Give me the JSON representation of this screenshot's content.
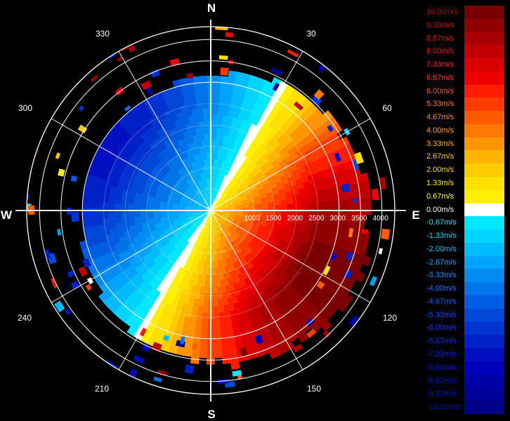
{
  "chart_data": {
    "type": "heatmap",
    "subtype": "polar-radar-ppi",
    "compass": {
      "north": "N",
      "east": "E",
      "south": "S",
      "west": "W"
    },
    "azimuth_labels": [
      "30",
      "60",
      "120",
      "150",
      "210",
      "240",
      "300",
      "330"
    ],
    "range_labels": [
      "1000",
      "1500",
      "2000",
      "2500",
      "3000",
      "3500",
      "4000"
    ],
    "range_max": 4300,
    "colorbar": {
      "labels": [
        "10.00m/s",
        "9.33m/s",
        "8.67m/s",
        "8.00m/s",
        "7.33m/s",
        "6.67m/s",
        "6.00m/s",
        "5.33m/s",
        "4.67m/s",
        "4.00m/s",
        "3.33m/s",
        "2.67m/s",
        "2.00m/s",
        "1.33m/s",
        "0.67m/s",
        "0.00m/s",
        "-0.67m/s",
        "-1.33m/s",
        "-2.00m/s",
        "-2.67m/s",
        "-3.33m/s",
        "-4.00m/s",
        "-4.67m/s",
        "-5.33m/s",
        "-6.00m/s",
        "-6.67m/s",
        "-7.33m/s",
        "-8.00m/s",
        "-8.67m/s",
        "-9.33m/s",
        "-10.00m/s"
      ],
      "colors": [
        "#7a0000",
        "#900000",
        "#a80000",
        "#c00000",
        "#d80000",
        "#ee0000",
        "#ff1e00",
        "#ff3c00",
        "#ff5a00",
        "#ff7800",
        "#ff9600",
        "#ffb400",
        "#ffcc00",
        "#ffe000",
        "#fff000",
        "#ffffff",
        "#00e8ff",
        "#00d4ff",
        "#00bcff",
        "#00a4ff",
        "#008cf0",
        "#0074e8",
        "#005ce0",
        "#0048d8",
        "#0034d0",
        "#0020c8",
        "#0010c0",
        "#0000b8",
        "#0000a8",
        "#000098",
        "#000088"
      ],
      "label_colors": [
        "#a80000",
        "#c00000",
        "#d80000",
        "#ee0000",
        "#ff2020",
        "#ff3c00",
        "#ff5a00",
        "#ff7800",
        "#ff8c00",
        "#ffa000",
        "#ffb400",
        "#ffc800",
        "#ffdc00",
        "#ffee00",
        "#ffff30",
        "#ffffff",
        "#00e8ff",
        "#00d4ff",
        "#00bcff",
        "#00a4ff",
        "#008cff",
        "#0074ff",
        "#005cff",
        "#0048ff",
        "#0034ff",
        "#0020ff",
        "#0010ff",
        "#0000ff",
        "#0000e0",
        "#0000c8",
        "#0000b0"
      ]
    },
    "velocity_model": {
      "description": "radial velocity field, positive (away) on east/south side, negative (toward) on north/west side",
      "inner_range_max_m": [
        2900,
        3700
      ],
      "peak_positive": 10.0,
      "peak_negative": -7.0
    },
    "grid": true
  }
}
